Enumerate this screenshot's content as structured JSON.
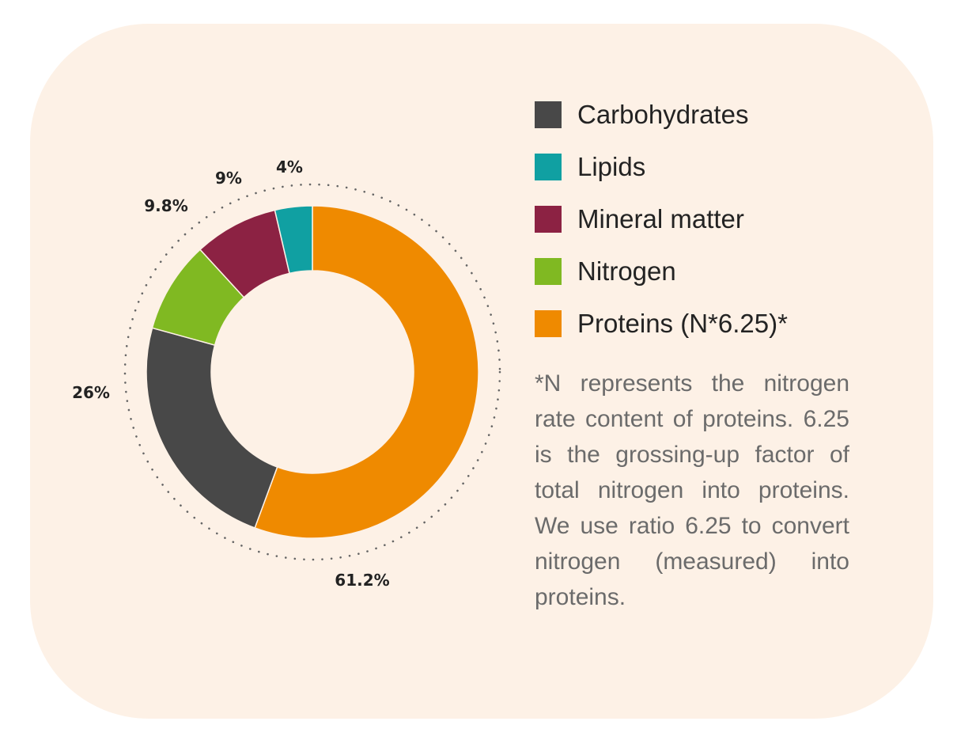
{
  "chart_data": {
    "type": "pie",
    "variant": "donut",
    "title": "",
    "slices": [
      {
        "label": "Proteins (N*6.25)*",
        "value": 61.2,
        "display": "61.2%",
        "color": "#ef8a00"
      },
      {
        "label": "Carbohydrates",
        "value": 26,
        "display": "26%",
        "color": "#484848"
      },
      {
        "label": "Nitrogen",
        "value": 9.8,
        "display": "9.8%",
        "color": "#80b922"
      },
      {
        "label": "Mineral matter",
        "value": 9,
        "display": "9%",
        "color": "#8c2243"
      },
      {
        "label": "Lipids",
        "value": 4,
        "display": "4%",
        "color": "#10a0a2"
      }
    ],
    "legend": {
      "placement": "right",
      "entries": [
        {
          "label": "Carbohydrates",
          "color": "#484848"
        },
        {
          "label": "Lipids",
          "color": "#10a0a2"
        },
        {
          "label": "Mineral matter",
          "color": "#8c2243"
        },
        {
          "label": "Nitrogen",
          "color": "#80b922"
        },
        {
          "label": "Proteins (N*6.25)*",
          "color": "#ef8a00"
        }
      ]
    },
    "footnote": "*N represents the nitrogen rate content of proteins. 6.25 is the grossing-up factor of total nitrogen into proteins. We use ratio 6.25 to convert nitrogen (measured) into proteins."
  }
}
